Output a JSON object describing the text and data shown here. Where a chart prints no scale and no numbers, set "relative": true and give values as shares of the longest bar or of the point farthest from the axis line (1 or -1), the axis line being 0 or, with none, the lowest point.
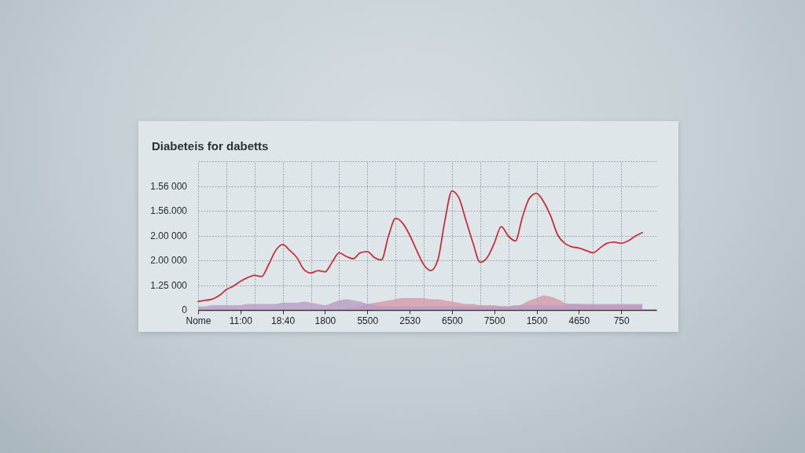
{
  "chart_data": {
    "type": "line",
    "title": "Diabeteis for dabetts",
    "relative": true,
    "grid": true,
    "annotations": [
      "1.56 000",
      "1.56.000",
      "2.00 000",
      "2.00 000",
      "1.25 000",
      "0"
    ],
    "categories": [
      "Nome",
      null,
      null,
      null,
      null,
      null,
      "11:00",
      null,
      null,
      null,
      null,
      null,
      "18:40",
      null,
      null,
      null,
      null,
      null,
      "1800",
      null,
      null,
      null,
      null,
      null,
      "5500",
      null,
      null,
      null,
      null,
      null,
      "2530",
      null,
      null,
      null,
      null,
      null,
      "6500",
      null,
      null,
      null,
      null,
      null,
      "7500",
      null,
      null,
      null,
      null,
      null,
      "1500",
      null,
      null,
      null,
      null,
      null,
      "4650",
      null,
      null,
      null,
      null,
      null,
      "750",
      null,
      null,
      null
    ],
    "series": [
      {
        "type": "area",
        "color": "#d59aa8",
        "values": [
          null,
          null,
          null,
          null,
          null,
          null,
          null,
          null,
          null,
          null,
          null,
          null,
          null,
          null,
          null,
          null,
          null,
          null,
          null,
          null,
          null,
          0.01,
          0.02,
          0.03,
          0.05,
          0.06,
          0.07,
          0.08,
          0.09,
          0.1,
          0.1,
          0.1,
          0.1,
          0.09,
          0.09,
          0.08,
          0.07,
          0.06,
          0.05,
          0.05,
          0.04,
          0.04,
          0.04,
          0.03,
          0.03,
          0.03,
          0.05,
          0.08,
          0.1,
          0.12,
          0.11,
          0.09,
          0.06,
          0.05,
          0.05,
          0.04,
          0.04,
          0.04,
          0.04,
          0.04,
          0.04,
          0.04,
          0.04,
          0.04
        ]
      },
      {
        "type": "area",
        "color": "#b99cc6",
        "values": [
          0.03,
          0.03,
          0.04,
          0.04,
          0.04,
          0.04,
          0.04,
          0.05,
          0.05,
          0.05,
          0.05,
          0.05,
          0.06,
          0.06,
          0.06,
          0.07,
          0.06,
          0.05,
          0.04,
          0.06,
          0.08,
          0.09,
          0.08,
          0.07,
          0.05,
          0.04,
          0.03,
          0.03,
          0.03,
          0.03,
          0.03,
          0.03,
          0.03,
          0.03,
          0.03,
          0.03,
          0.03,
          0.03,
          0.03,
          0.03,
          0.03,
          0.03,
          0.03,
          0.03,
          0.03,
          0.04,
          0.04,
          0.04,
          0.04,
          0.04,
          0.04,
          0.04,
          0.04,
          0.05,
          0.05,
          0.05,
          0.05,
          0.05,
          0.05,
          0.05,
          0.05,
          0.05,
          0.05,
          0.05
        ]
      },
      {
        "color": "#c4303c",
        "values": [
          0.07,
          0.08,
          0.09,
          0.12,
          0.17,
          0.2,
          0.24,
          0.27,
          0.29,
          0.28,
          0.38,
          0.5,
          0.55,
          0.5,
          0.44,
          0.34,
          0.31,
          0.33,
          0.32,
          0.4,
          0.48,
          0.45,
          0.43,
          0.48,
          0.49,
          0.44,
          0.42,
          0.62,
          0.77,
          0.73,
          0.63,
          0.5,
          0.38,
          0.33,
          0.42,
          0.75,
          1,
          0.94,
          0.75,
          0.56,
          0.4,
          0.44,
          0.56,
          0.7,
          0.62,
          0.58,
          0.78,
          0.94,
          0.98,
          0.91,
          0.79,
          0.63,
          0.56,
          0.53,
          0.52,
          0.5,
          0.48,
          0.52,
          0.56,
          0.57,
          0.56,
          0.58,
          0.62,
          0.65
        ]
      }
    ]
  }
}
